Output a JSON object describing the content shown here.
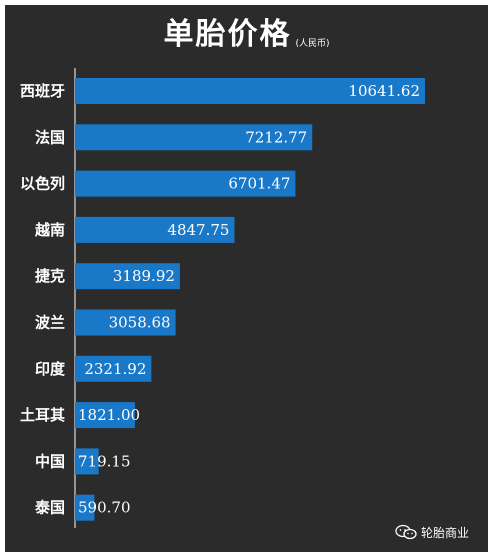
{
  "chart_data": {
    "type": "bar",
    "orientation": "horizontal",
    "title": "单胎价格",
    "subtitle": "(人民币)",
    "categories": [
      "西班牙",
      "法国",
      "以色列",
      "越南",
      "捷克",
      "波兰",
      "印度",
      "土耳其",
      "中国",
      "泰国"
    ],
    "values": [
      10641.62,
      7212.77,
      6701.47,
      4847.75,
      3189.92,
      3058.68,
      2321.92,
      1821.0,
      719.15,
      590.7
    ],
    "value_labels": [
      "10641.62",
      "7212.77",
      "6701.47",
      "4847.75",
      "3189.92",
      "3058.68",
      "2321.92",
      "1821.00",
      "719.15",
      "590.70"
    ],
    "xlim": [
      0,
      10641.62
    ],
    "bar_color": "#1a78c8",
    "background_color": "#2b2b2b",
    "grid": false
  },
  "watermark": {
    "icon": "wechat-icon",
    "text": "轮胎商业"
  }
}
